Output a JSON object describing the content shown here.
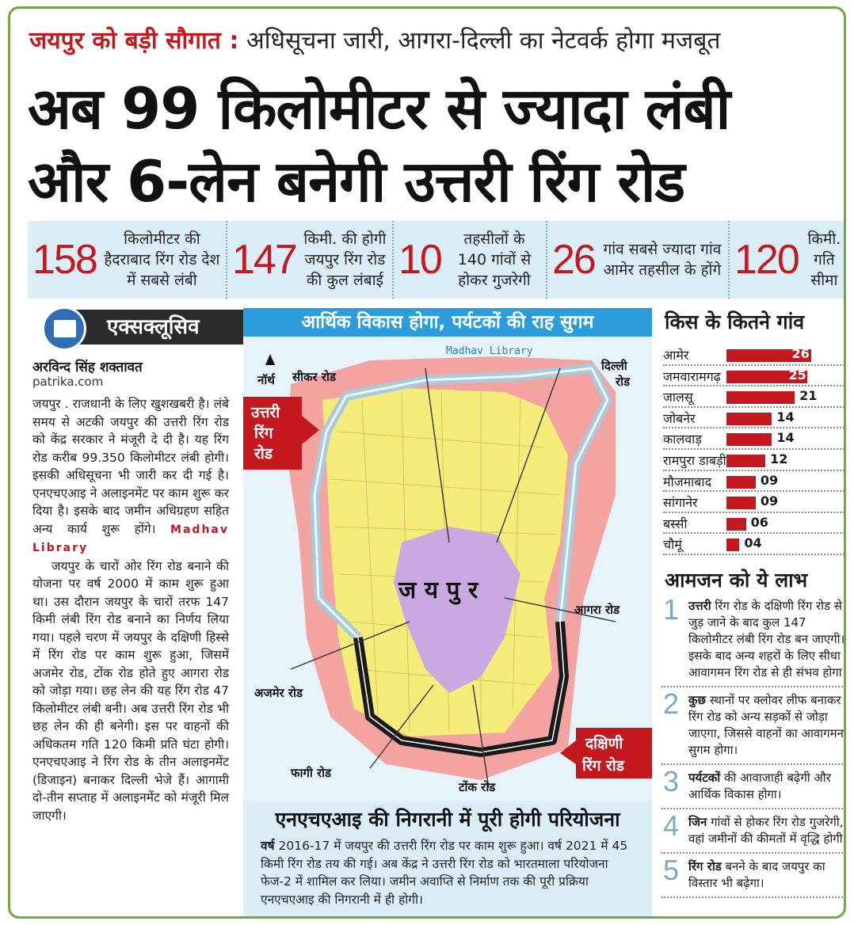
{
  "header": {
    "kicker_red": "जयपुर को बड़ी सौगात :",
    "kicker_text": " अधिसूचना जारी, आगरा-दिल्ली का नेटवर्क होगा मजबूत",
    "headline_line1": "अब 99 किलोमीटर से ज्यादा लंबी",
    "headline_line2": "और 6-लेन बनेगी उत्तरी रिंग रोड"
  },
  "stats": [
    {
      "num": "158",
      "text": "किलोमीटर की हैदराबाद रिंग रोड देश में सबसे लंबी"
    },
    {
      "num": "147",
      "text": "किमी. की होगी जयपुर रिंग रोड की कुल लंबाई"
    },
    {
      "num": "10",
      "text": "तहसीलों के 140 गांवों से होकर गुजरेगी"
    },
    {
      "num": "26",
      "text": "गांव सबसे ज्यादा गांव आमेर तहसील के होंगे"
    },
    {
      "num": "120",
      "text": "किमी. गति सीमा"
    }
  ],
  "exclusive": {
    "logo_text": "पत्रिका",
    "label": "एक्सक्लूसिव",
    "author": "अरविन्द सिंह शक्तावत",
    "site": "patrika.com"
  },
  "article": {
    "p1": "जयपुर . राजधानी के लिए खुशखबरी है। लंबे समय से अटकी जयपुर की उत्तरी रिंग रोड को केंद्र सरकार ने मंजूरी दे दी है। यह रिंग रोड करीब 99.350 किलोमीटर लंबी होगी। इसकी अधिसूचना भी जारी कर दी गई है। एनएचएआइ ने अलाइनमेंट पर काम शुरू कर दिया है। इसके बाद जमीन अधिग्रहण सहित अन्य कार्य शुरू होंगे।",
    "watermark": "Madhav Library",
    "p2": "जयपुर के चारों ओर रिंग रोड बनाने की योजना पर वर्ष 2000 में काम शुरू हुआ था। उस दौरान जयपुर के चारों तरफ 147 किमी लंबी रिंग रोड बनाने का निर्णय लिया गया। पहले चरण में जयपुर के दक्षिणी हिस्से में रिंग रोड पर काम शुरू हुआ, जिसमें अजमेर रोड, टोंक रोड होते हुए आगरा रोड को जोड़ा गया। छह लेन की यह रिंग रोड 47 किलोमीटर लंबी बनी। अब उत्तरी रिंग रोड भी छह लेन की ही बनेगी। इस पर वाहनों की अधिकतम गति 120 किमी प्रति घंटा होगी। एनएचएआइ ने रिंग रोड के तीन अलाइनमेंट (डिजाइन) बनाकर दिल्ली भेजे हैं। आगामी दो-तीन सप्ताह में अलाइनमेंट को मंजूरी मिल जाएगी।"
  },
  "map": {
    "band": "आर्थिक विकास होगा, पर्यटकों की राह सुगम",
    "watermark": "Madhav Library",
    "north": "नॉर्थ",
    "sikar": "सीकर रोड",
    "delhi_1": "दिल्ली",
    "delhi_2": "रोड",
    "north_ring_1": "उत्तरी",
    "north_ring_2": "रिंग",
    "north_ring_3": "रोड",
    "city": "ज य पु र",
    "agra": "आगरा रोड",
    "ajmer": "अजमेर रोड",
    "south_ring_1": "दक्षिणी",
    "south_ring_2": "रिंग रोड",
    "phagi": "फागी रोड",
    "tonk": "टोंक रोड",
    "colors": {
      "outer": "#f3a3a0",
      "inner": "#f5ec7a",
      "city": "#c9a9e0",
      "road_north": "#a9c9dc",
      "road_south": "#1a1a1a"
    }
  },
  "nhai": {
    "head": "एनएचएआइ की निगरानी में पूरी होगी परियोजना",
    "lead": "वर्ष",
    "body": " 2016-17 में जयपुर की उत्तरी रिंग रोड पर काम शुरू हुआ। वर्ष 2021 में 45 किमी रिंग रोड तय की गई। अब केंद्र ने उत्तरी रिंग रोड को भारतमाला परियोजना फेज-2 में शामिल कर लिया। जमीन अवाप्ति से निर्माण तक की पूरी प्रक्रिया एनएचएआइ की निगरानी में ही होगी।"
  },
  "villages_title": "किस के कितने गांव",
  "chart_data": {
    "type": "bar",
    "title": "किस के कितने गांव",
    "categories": [
      "आमेर",
      "जमवारामगढ़",
      "जालसू",
      "जोबनेर",
      "कालवाड़",
      "रामपुरा डाबड़ी",
      "मौजमाबाद",
      "सांगानेर",
      "बस्सी",
      "चौमूं"
    ],
    "values": [
      26,
      25,
      21,
      14,
      14,
      12,
      9,
      9,
      6,
      4
    ],
    "labels": [
      "26",
      "25",
      "21",
      "14",
      "14",
      "12",
      "09",
      "09",
      "06",
      "04"
    ],
    "color": "#c4181f"
  },
  "benefits_title": "आमजन को ये लाभ",
  "benefits": [
    {
      "n": "1",
      "bold": "उत्तरी",
      "text": " रिंग रोड के दक्षिणी रिंग रोड से जुड़ जाने के बाद कुल 147 किलोमीटर लंबी रिंग रोड बन जाएगी। इसके बाद अन्य शहरों के लिए सीधा आवागमन रिंग रोड से ही संभव होगा।"
    },
    {
      "n": "2",
      "bold": "कुछ",
      "text": " स्थानों पर क्लोवर लीफ बनाकर रिंग रोड को अन्य सड़कों से जोड़ा जाएगा, जिससे वाहनों का आवागमन सुगम होगा।"
    },
    {
      "n": "3",
      "bold": "पर्यटकों",
      "text": " की आवाजाही बढ़ेगी और आर्थिक विकास होगा।"
    },
    {
      "n": "4",
      "bold": "जिन",
      "text": " गांवों से होकर रिंग रोड गुजरेगी, वहां जमीनों की कीमतों में वृद्धि होगी।"
    },
    {
      "n": "5",
      "bold": "रिंग रोड",
      "text": " बनने के बाद जयपुर का विस्तार भी बढ़ेगा।"
    }
  ]
}
